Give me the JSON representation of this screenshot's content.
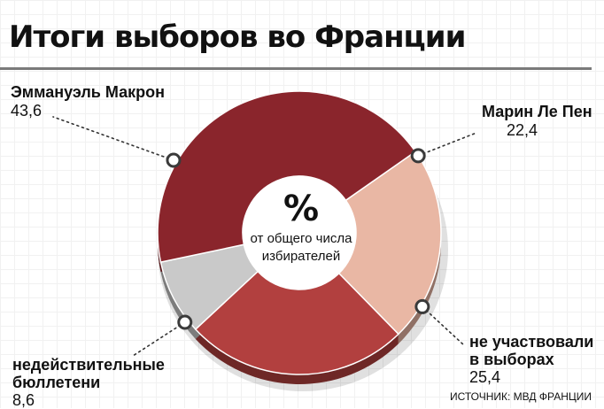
{
  "title": "Итоги выборов во Франции",
  "center": {
    "symbol": "%",
    "caption_line1": "от общего числа",
    "caption_line2": "избирателей"
  },
  "source": "ИСТОЧНИК: МВД ФРАНЦИИ",
  "colors": {
    "macron": "#8a252c",
    "lepen": "#e9b7a4",
    "abstained": "#b2403f",
    "invalid": "#c9c9c9"
  },
  "chart_data": {
    "type": "pie",
    "title": "Итоги выборов во Франции",
    "unit": "%",
    "slices": [
      {
        "name": "Марин Ле Пен",
        "value": 22.4,
        "value_label": "22,4"
      },
      {
        "name": "не участвовали в выборах",
        "value": 25.4,
        "value_label": "25,4"
      },
      {
        "name": "недействительные бюллетени",
        "value": 8.6,
        "value_label": "8,6"
      },
      {
        "name": "Эммануэль Макрон",
        "value": 43.6,
        "value_label": "43,6"
      }
    ]
  },
  "labels": {
    "macron": {
      "name": "Эммануэль Макрон",
      "value": "43,6"
    },
    "lepen": {
      "name": "Марин Ле Пен",
      "value": "22,4"
    },
    "abstained": {
      "name_line1": "не участвовали",
      "name_line2": "в выборах",
      "value": "25,4"
    },
    "invalid": {
      "name_line1": "недействительные",
      "name_line2": "бюллетени",
      "value": "8,6"
    }
  }
}
